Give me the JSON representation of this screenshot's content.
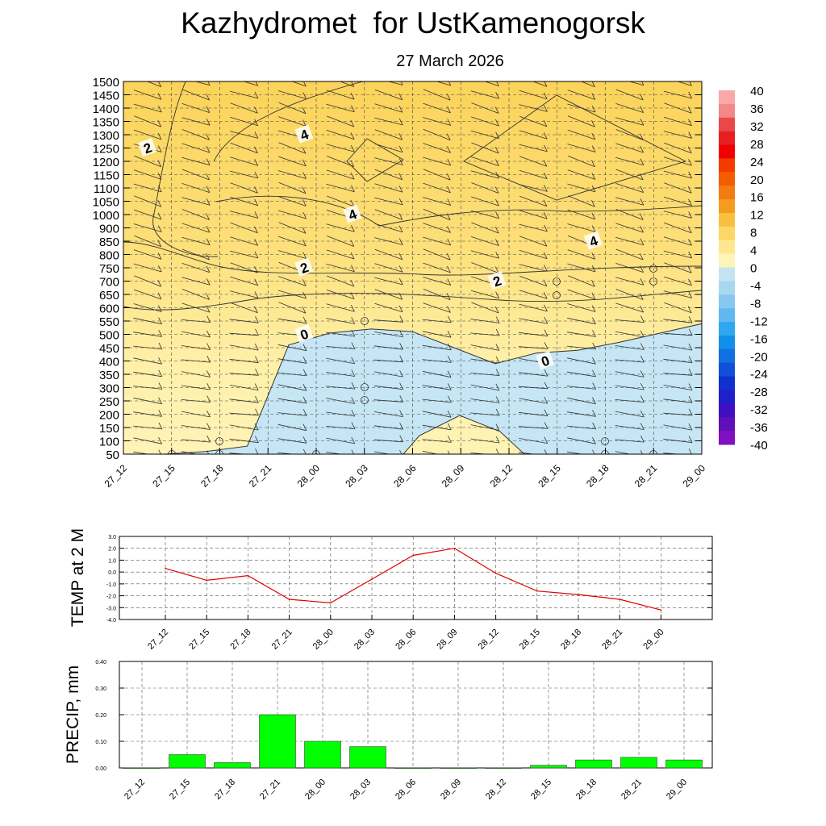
{
  "header": {
    "title": "Kazhydromet  for UstKamenogorsk",
    "date": "27 March 2026"
  },
  "chart_data": [
    {
      "type": "heatmap",
      "title": "Kazhydromet  for UstKamenogorsk",
      "subtitle": "27 March 2026",
      "x_ticks": [
        "27_12",
        "27_15",
        "27_18",
        "27_21",
        "28_00",
        "28_03",
        "28_06",
        "28_09",
        "28_12",
        "28_15",
        "28_18",
        "28_21",
        "29_00"
      ],
      "y_ticks": [
        1500,
        1450,
        1400,
        1350,
        1300,
        1250,
        1200,
        1150,
        1100,
        1050,
        1000,
        900,
        850,
        800,
        750,
        700,
        650,
        600,
        550,
        500,
        450,
        400,
        350,
        300,
        250,
        200,
        150,
        100,
        50
      ],
      "ylim": [
        50,
        1500
      ],
      "zero_line_height": [
        0,
        40,
        60,
        80,
        460,
        505,
        520,
        510,
        450,
        390,
        430,
        440,
        470,
        505,
        540
      ],
      "contour_labels": [
        {
          "text": "2",
          "x": "27_12",
          "y": 1250
        },
        {
          "text": "4",
          "x": "27_21",
          "y": 1300
        },
        {
          "text": "4",
          "x": "28_00",
          "y": 1000
        },
        {
          "text": "4",
          "x": "28_15",
          "y": 850
        },
        {
          "text": "2",
          "x": "27_21",
          "y": 750
        },
        {
          "text": "2",
          "x": "28_09",
          "y": 700
        },
        {
          "text": "0",
          "x": "27_21",
          "y": 500
        },
        {
          "text": "0",
          "x": "28_12",
          "y": 400
        }
      ],
      "colorbar": {
        "labels": [
          "40",
          "36",
          "32",
          "28",
          "24",
          "20",
          "16",
          "12",
          "8",
          "4",
          "0",
          "-4",
          "-8",
          "-12",
          "-16",
          "-20",
          "-24",
          "-28",
          "-32",
          "-36",
          "-40"
        ],
        "warm_colors": [
          "#f8a8a8",
          "#f28888",
          "#e94848",
          "#e62020",
          "#f00000",
          "#f33b00",
          "#f35d00",
          "#f37c10",
          "#f49c20",
          "#f9c040",
          "#fbd768",
          "#fde890",
          "#fff4b8"
        ],
        "cold_colors": [
          "#c4e4f4",
          "#a8d8f0",
          "#88c8f0",
          "#60b8f0",
          "#30a8f0",
          "#1090e8",
          "#1070e0",
          "#1050d8",
          "#1030d0",
          "#2020c8",
          "#4010c0",
          "#6010b8",
          "#8010c0"
        ]
      }
    },
    {
      "type": "line",
      "ylabel": "TEMP at 2 M",
      "x": [
        "27_12",
        "27_15",
        "27_18",
        "27_21",
        "28_00",
        "28_03",
        "28_06",
        "28_09",
        "28_12",
        "28_15",
        "28_18",
        "28_21",
        "29_00"
      ],
      "values": [
        0.3,
        -0.7,
        -0.3,
        -2.3,
        -2.6,
        -0.6,
        1.4,
        2.0,
        -0.1,
        -1.6,
        -1.9,
        -2.3,
        -3.2
      ],
      "ylim": [
        -4.0,
        3.0
      ],
      "y_ticks": [
        "3.0",
        "2.0",
        "1.0",
        "0.0",
        "-1.0",
        "-2.0",
        "-3.0",
        "-4.0"
      ],
      "color": "#e00000"
    },
    {
      "type": "bar",
      "ylabel": "PRECIP, mm",
      "categories": [
        "27_12",
        "27_15",
        "27_18",
        "27_21",
        "28_00",
        "28_03",
        "28_06",
        "28_09",
        "28_12",
        "28_15",
        "28_18",
        "28_21",
        "29_00"
      ],
      "values": [
        0.0,
        0.05,
        0.02,
        0.2,
        0.1,
        0.08,
        0.0,
        0.0,
        0.0,
        0.01,
        0.03,
        0.04,
        0.03
      ],
      "ylim": [
        0,
        0.4
      ],
      "y_ticks": [
        "0.40",
        "0.30",
        "0.20",
        "0.10",
        "0.00"
      ],
      "color": "#00ff00"
    }
  ]
}
